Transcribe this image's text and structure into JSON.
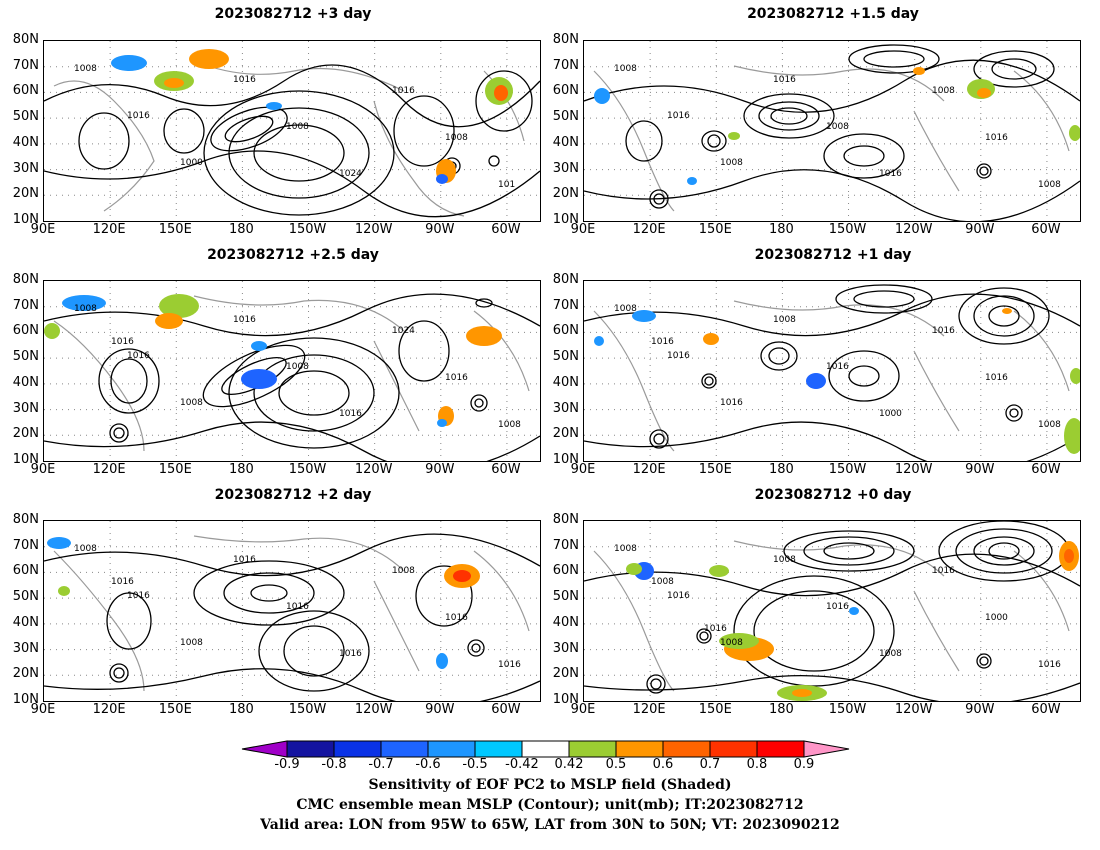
{
  "panels": [
    {
      "title": "2023082712 +3 day"
    },
    {
      "title": "2023082712 +1.5 day"
    },
    {
      "title": "2023082712 +2.5 day"
    },
    {
      "title": "2023082712 +1 day"
    },
    {
      "title": "2023082712 +2 day"
    },
    {
      "title": "2023082712 +0 day"
    }
  ],
  "axes": {
    "lat_labels": [
      "80N",
      "70N",
      "60N",
      "50N",
      "40N",
      "30N",
      "20N",
      "10N"
    ],
    "lon_labels": [
      "90E",
      "120E",
      "150E",
      "180",
      "150W",
      "120W",
      "90W",
      "60W"
    ]
  },
  "colorbar": {
    "labels": [
      "-0.9",
      "-0.8",
      "-0.7",
      "-0.6",
      "-0.5",
      "-0.42",
      "0.42",
      "0.5",
      "0.6",
      "0.7",
      "0.8",
      "0.9"
    ],
    "colors": [
      "#a000c8",
      "#1414a0",
      "#0a32e6",
      "#1e64ff",
      "#1e96ff",
      "#00c8ff",
      "#ffffff",
      "#9bcd32",
      "#ff9600",
      "#ff6400",
      "#ff3200",
      "#ff0000",
      "#ff96c8"
    ]
  },
  "contour_labels": {
    "p0": [
      "1008",
      "1016",
      "1000",
      "1016",
      "1008",
      "1024",
      "1016",
      "1008",
      "101"
    ],
    "p1": [
      "1008",
      "1016",
      "1008",
      "1016",
      "1008",
      "1016",
      "1008",
      "1016",
      "1008"
    ],
    "p2": [
      "1008",
      "1016",
      "1008",
      "1016",
      "1008",
      "1016",
      "1024",
      "1016",
      "1008",
      "1016"
    ],
    "p3": [
      "1008",
      "1016",
      "1016",
      "1008",
      "1016",
      "1000",
      "1016",
      "1016",
      "1008",
      "1016"
    ],
    "p4": [
      "1008",
      "1016",
      "1008",
      "1016",
      "1016",
      "1016",
      "1008",
      "1016",
      "1016",
      "1016"
    ],
    "p5": [
      "1008",
      "1016",
      "1008",
      "1008",
      "1016",
      "1008",
      "1016",
      "1000",
      "1016",
      "1008",
      "1016"
    ]
  },
  "caption": {
    "line1": "Sensitivity of EOF PC2 to MSLP field (Shaded)",
    "line2": "CMC ensemble mean MSLP (Contour); unit(mb); IT:2023082712",
    "line3": "Valid area: LON from 95W to 65W, LAT from 30N to 50N; VT: 2023090212"
  }
}
